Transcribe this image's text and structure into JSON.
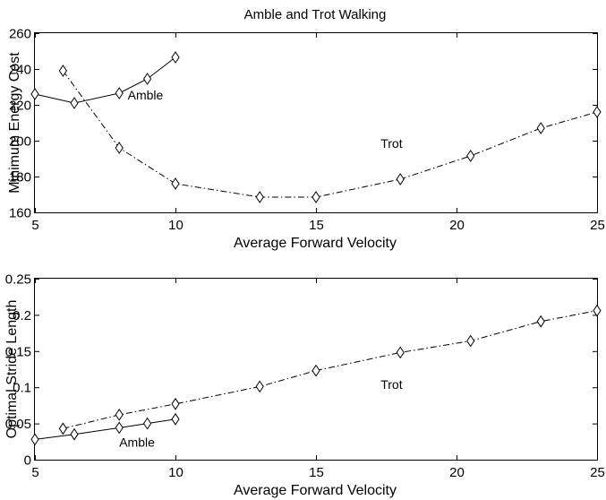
{
  "chart_data": [
    {
      "type": "line",
      "title": "Amble and Trot Walking",
      "xlabel": "Average Forward Velocity",
      "ylabel": "Minimum Energy Cost",
      "xlim": [
        5,
        25
      ],
      "ylim": [
        160,
        260
      ],
      "xticks": [
        "5",
        "10",
        "15",
        "20",
        "25"
      ],
      "yticks": [
        "160",
        "180",
        "200",
        "220",
        "240",
        "260"
      ],
      "grid": false,
      "series": [
        {
          "label": "Amble",
          "line_style": "solid",
          "marker": "diamond",
          "x": [
            5,
            6.4,
            8,
            9,
            10
          ],
          "y": [
            226,
            221,
            226.5,
            234.5,
            246.5
          ]
        },
        {
          "label": "Trot",
          "line_style": "dashdot",
          "marker": "diamond",
          "x": [
            6,
            8,
            10,
            13,
            15,
            18,
            20.5,
            23,
            25
          ],
          "y": [
            239,
            196,
            176,
            168.5,
            168.5,
            178.5,
            191.5,
            207,
            216
          ]
        }
      ],
      "annotations": [
        {
          "text": "Amble",
          "x": 8.3,
          "y": 223
        },
        {
          "text": "Trot",
          "x": 17.3,
          "y": 196
        }
      ]
    },
    {
      "type": "line",
      "title": "",
      "xlabel": "Average Forward Velocity",
      "ylabel": "Optimal Stride Length",
      "xlim": [
        5,
        25
      ],
      "ylim": [
        0,
        0.25
      ],
      "xticks": [
        "5",
        "10",
        "15",
        "20",
        "25"
      ],
      "yticks": [
        "0",
        "0.05",
        "0.1",
        "0.15",
        "0.2",
        "0.25"
      ],
      "grid": false,
      "series": [
        {
          "label": "Amble",
          "line_style": "solid",
          "marker": "diamond",
          "x": [
            5,
            6.4,
            8,
            9,
            10
          ],
          "y": [
            0.028,
            0.035,
            0.044,
            0.05,
            0.056
          ]
        },
        {
          "label": "Trot",
          "line_style": "dashdot",
          "marker": "diamond",
          "x": [
            6,
            8,
            10,
            13,
            15,
            18,
            20.5,
            23,
            25
          ],
          "y": [
            0.043,
            0.062,
            0.077,
            0.101,
            0.123,
            0.148,
            0.164,
            0.191,
            0.206
          ]
        }
      ],
      "annotations": [
        {
          "text": "Amble",
          "x": 8.0,
          "y": 0.018
        },
        {
          "text": "Trot",
          "x": 17.3,
          "y": 0.098
        }
      ]
    }
  ]
}
